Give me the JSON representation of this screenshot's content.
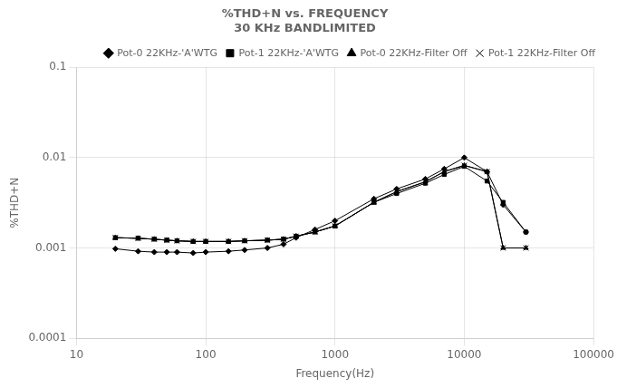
{
  "chart_data": {
    "type": "line",
    "title": "%THD+N vs. FREQUENCY",
    "subtitle": "30 KHz BANDLIMITED",
    "x_label": "Frequency(Hz)",
    "y_label": "%THD+N",
    "log": true,
    "grid": true,
    "legend": "upper right",
    "xlim": [
      10,
      100000
    ],
    "ylim": [
      0.0001,
      0.1
    ],
    "xticks": [
      10,
      100,
      1000,
      10000,
      100000
    ],
    "yticks": [
      0.0001,
      0.001,
      0.01,
      0.1
    ],
    "x": [
      20,
      30,
      40,
      50,
      60,
      80,
      100,
      150,
      200,
      300,
      400,
      500,
      700,
      1000,
      2000,
      3000,
      5000,
      7000,
      10000,
      15000,
      20000,
      30000
    ],
    "series": [
      {
        "name": "Pot-0 22KHz-'A'WTG",
        "color": "#000000",
        "marker": "diamond",
        "line_style": "solid",
        "values": [
          0.00098,
          0.00092,
          0.0009,
          0.0009,
          0.0009,
          0.00088,
          0.0009,
          0.00092,
          0.00095,
          0.001,
          0.0011,
          0.0013,
          0.0016,
          0.002,
          0.0035,
          0.0045,
          0.0058,
          0.0075,
          0.01,
          0.007,
          0.003,
          0.0015
        ]
      },
      {
        "name": "Pot-1 22KHz-'A'WTG",
        "color": "#000000",
        "marker": "square",
        "line_style": "solid",
        "values": [
          0.0013,
          0.00128,
          0.00125,
          0.00122,
          0.0012,
          0.00118,
          0.00118,
          0.00118,
          0.0012,
          0.00122,
          0.00125,
          0.00135,
          0.0015,
          0.00175,
          0.0032,
          0.004,
          0.0052,
          0.0065,
          0.008,
          0.0055,
          0.0032,
          0.0015
        ]
      },
      {
        "name": "Pot-0 22KHz-Filter Off",
        "color": "#000000",
        "marker": "triangle",
        "line_style": "solid",
        "values": [
          0.0013,
          0.00128,
          0.00125,
          0.00122,
          0.0012,
          0.00118,
          0.00118,
          0.00118,
          0.0012,
          0.00122,
          0.00125,
          0.00135,
          0.0015,
          0.00175,
          0.0032,
          0.0042,
          0.0054,
          0.007,
          0.0082,
          0.007,
          0.001,
          0.001
        ]
      },
      {
        "name": "Pot-1 22KHz-Filter Off",
        "color": "#000000",
        "marker": "x",
        "line_style": "solid",
        "values": [
          0.0013,
          0.00128,
          0.00125,
          0.00122,
          0.0012,
          0.00118,
          0.00118,
          0.00118,
          0.0012,
          0.00122,
          0.00125,
          0.00135,
          0.0015,
          0.00175,
          0.0032,
          0.0042,
          0.0054,
          0.007,
          0.0082,
          0.007,
          0.001,
          0.001
        ]
      }
    ]
  }
}
